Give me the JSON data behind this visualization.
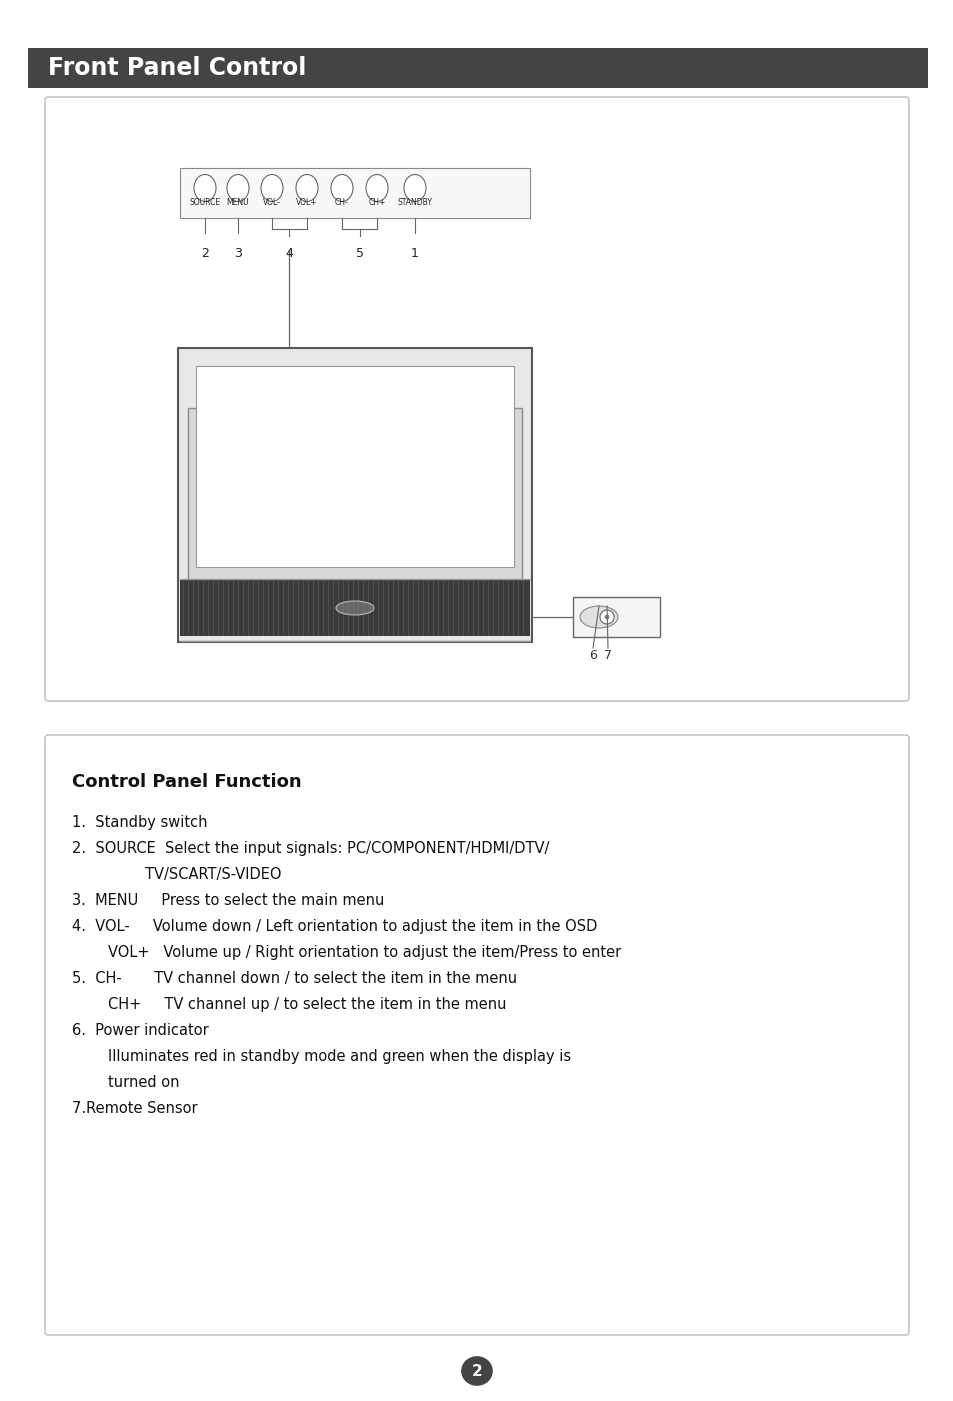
{
  "page_bg": "#ffffff",
  "header_bg": "#444444",
  "header_text": "Front Panel Control",
  "header_text_color": "#ffffff",
  "header_font_size": 17,
  "button_labels": [
    "SOURCE",
    "MENU",
    "VOL-",
    "VOL+",
    "CH-",
    "CH+",
    "STANDBY"
  ],
  "cpf_title": "Control Panel Function",
  "page_number": "2",
  "line1": "1.  Standby switch",
  "line2a": "2.  SOURCE  Select the input signals: PC/COMPONENT/HDMI/DTV/",
  "line2b": "               TV/SCART/S-VIDEO",
  "line3": "3.  MENU     Press to select the main menu",
  "line4a": "4.  VOL-     Volume down / Left orientation to adjust the item in the OSD",
  "line4b": "    VOL+    Volume up / Right orientation to adjust the item/Press to enter",
  "line5a": "5.  CH-       TV channel down / to select the item in the menu",
  "line5b": "    CH+      TV channel up / to select the item in the menu",
  "line6a": "6.  Power indicator",
  "line6b": "    Illuminates red in standby mode and green when the display is",
  "line6c": "    turned on",
  "line7": "7.Remote Sensor"
}
